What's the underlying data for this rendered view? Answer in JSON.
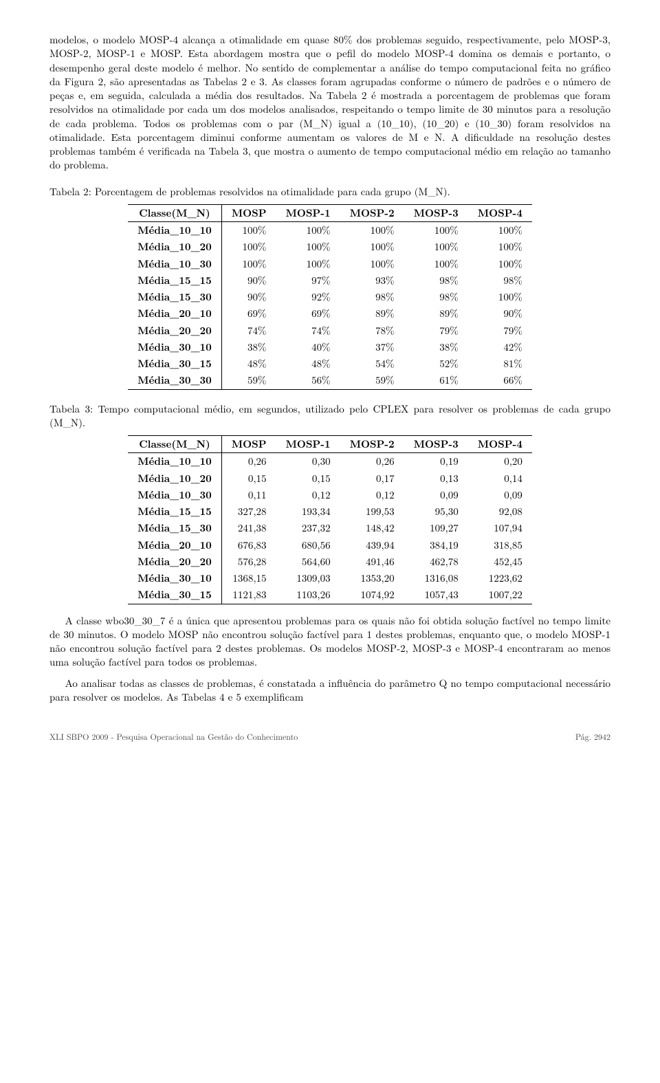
{
  "para1": "modelos, o modelo MOSP-4 alcança a otimalidade em quase 80% dos problemas seguido, respectivamente, pelo MOSP-3, MOSP-2, MOSP-1 e MOSP. Esta abordagem mostra que o pefil do modelo MOSP-4 domina os demais e portanto, o desempenho geral deste modelo é melhor. No sentido de complementar a análise do tempo computacional feita no gráfico da Figura 2, são apresentadas as Tabelas 2 e 3. As classes foram agrupadas conforme o número de padrões e o número de peças e, em seguida, calculada a média dos resultados. Na Tabela 2 é mostrada a porcentagem de problemas que foram resolvidos na otimalidade por cada um dos modelos analisados, respeitando o tempo limite de 30 minutos para a resolução de cada problema. Todos os problemas com o par (M_N) igual a (10_10), (10_20) e (10_30) foram resolvidos na otimalidade. Esta porcentagem diminui conforme aumentam os valores de M e N. A dificuldade na resolução destes problemas também é verificada na Tabela 3, que mostra o aumento de tempo computacional médio em relação ao tamanho do problema.",
  "table2": {
    "caption": "Tabela 2: Porcentagem de problemas resolvidos na otimalidade para cada grupo (M_N).",
    "columns": [
      "Classe(M_N)",
      "MOSP",
      "MOSP-1",
      "MOSP-2",
      "MOSP-3",
      "MOSP-4"
    ],
    "rows": [
      [
        "Média_10_10",
        "100%",
        "100%",
        "100%",
        "100%",
        "100%"
      ],
      [
        "Média_10_20",
        "100%",
        "100%",
        "100%",
        "100%",
        "100%"
      ],
      [
        "Média_10_30",
        "100%",
        "100%",
        "100%",
        "100%",
        "100%"
      ],
      [
        "Média_15_15",
        "90%",
        "97%",
        "93%",
        "98%",
        "98%"
      ],
      [
        "Média_15_30",
        "90%",
        "92%",
        "98%",
        "98%",
        "100%"
      ],
      [
        "Média_20_10",
        "69%",
        "69%",
        "89%",
        "89%",
        "90%"
      ],
      [
        "Média_20_20",
        "74%",
        "74%",
        "78%",
        "79%",
        "79%"
      ],
      [
        "Média_30_10",
        "38%",
        "40%",
        "37%",
        "38%",
        "42%"
      ],
      [
        "Média_30_15",
        "48%",
        "48%",
        "54%",
        "52%",
        "81%"
      ],
      [
        "Média_30_30",
        "59%",
        "56%",
        "59%",
        "61%",
        "66%"
      ]
    ]
  },
  "table3": {
    "caption": "Tabela 3: Tempo computacional médio, em segundos, utilizado pelo CPLEX para resolver os problemas de cada grupo (M_N).",
    "columns": [
      "Classe(M_N)",
      "MOSP",
      "MOSP-1",
      "MOSP-2",
      "MOSP-3",
      "MOSP-4"
    ],
    "rows": [
      [
        "Média_10_10",
        "0,26",
        "0,30",
        "0,26",
        "0,19",
        "0,20"
      ],
      [
        "Média_10_20",
        "0,15",
        "0,15",
        "0,17",
        "0,13",
        "0,14"
      ],
      [
        "Média_10_30",
        "0,11",
        "0,12",
        "0,12",
        "0,09",
        "0,09"
      ],
      [
        "Média_15_15",
        "327,28",
        "193,34",
        "199,53",
        "95,30",
        "92,08"
      ],
      [
        "Média_15_30",
        "241,38",
        "237,32",
        "148,42",
        "109,27",
        "107,94"
      ],
      [
        "Média_20_10",
        "676,83",
        "680,56",
        "439,94",
        "384,19",
        "318,85"
      ],
      [
        "Média_20_20",
        "576,28",
        "564,60",
        "491,46",
        "462,78",
        "452,45"
      ],
      [
        "Média_30_10",
        "1368,15",
        "1309,03",
        "1353,20",
        "1316,08",
        "1223,62"
      ],
      [
        "Média_30_15",
        "1121,83",
        "1103,26",
        "1074,92",
        "1057,43",
        "1007,22"
      ]
    ]
  },
  "para2": "A classe wbo30_30_7 é a única que apresentou problemas para os quais não foi obtida solução factível no tempo limite de 30 minutos. O modelo MOSP não encontrou solução factível para 1 destes problemas, enquanto que, o modelo MOSP-1 não encontrou solução factível para 2 destes problemas. Os modelos MOSP-2, MOSP-3 e MOSP-4 encontraram ao menos uma solução factível para todos os problemas.",
  "para3": "Ao analisar todas as classes de problemas, é constatada a influência do parâmetro Q no tempo computacional necessário para resolver os modelos. As Tabelas 4 e 5 exemplificam",
  "footer": {
    "left": "XLI SBPO 2009 - Pesquisa Operacional na Gestão do Conhecimento",
    "right": "Pág. 2942"
  }
}
